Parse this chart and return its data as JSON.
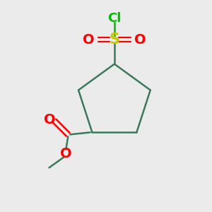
{
  "background_color": "#ebebeb",
  "ring_color": "#3a7a5a",
  "bond_width": 1.8,
  "atom_colors": {
    "S": "#c8c800",
    "O": "#ff0000",
    "Cl": "#00bb00"
  },
  "figsize": [
    3.0,
    3.0
  ],
  "dpi": 100,
  "font_size_S": 15,
  "font_size_O": 14,
  "font_size_Cl": 13,
  "font_size_label": 12
}
